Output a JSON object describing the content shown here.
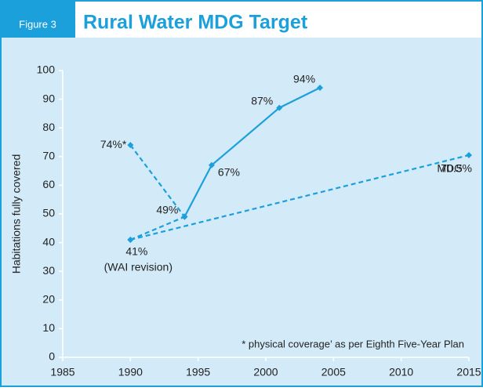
{
  "chart_data": {
    "type": "line",
    "figure_label": "Figure 3",
    "title": "Rural Water MDG Target",
    "ylabel": "Habitations fully covered",
    "xlim": [
      1985,
      2015
    ],
    "xticks": [
      1985,
      1990,
      1995,
      2000,
      2005,
      2010,
      2015
    ],
    "ylim": [
      0,
      100
    ],
    "yticks": [
      0,
      10,
      20,
      30,
      40,
      50,
      60,
      70,
      80,
      90,
      100
    ],
    "grid": false,
    "series": [
      {
        "color": "#1ba0dc",
        "dashed": true,
        "x": [
          1990,
          1994
        ],
        "values": [
          74,
          49
        ],
        "value_labels": [
          "74%*",
          "49%"
        ]
      },
      {
        "color": "#1ba0dc",
        "dashed": false,
        "x": [
          1994,
          1996,
          2001,
          2004
        ],
        "values": [
          49,
          67,
          87,
          94
        ],
        "value_labels": [
          null,
          "67%",
          "87%",
          "94%"
        ]
      },
      {
        "color": "#1ba0dc",
        "dashed": true,
        "x": [
          1990,
          1994
        ],
        "values": [
          41,
          49
        ],
        "value_labels": [
          "41%",
          null
        ]
      },
      {
        "color": "#1ba0dc",
        "dashed": true,
        "x": [
          1990,
          2015
        ],
        "values": [
          41,
          70.5
        ],
        "value_labels": [
          null,
          "70.5%"
        ]
      }
    ],
    "annotations": [
      "(WAI revision)",
      "MDG",
      "* physical coverage’ as per Eighth Five-Year Plan"
    ]
  }
}
